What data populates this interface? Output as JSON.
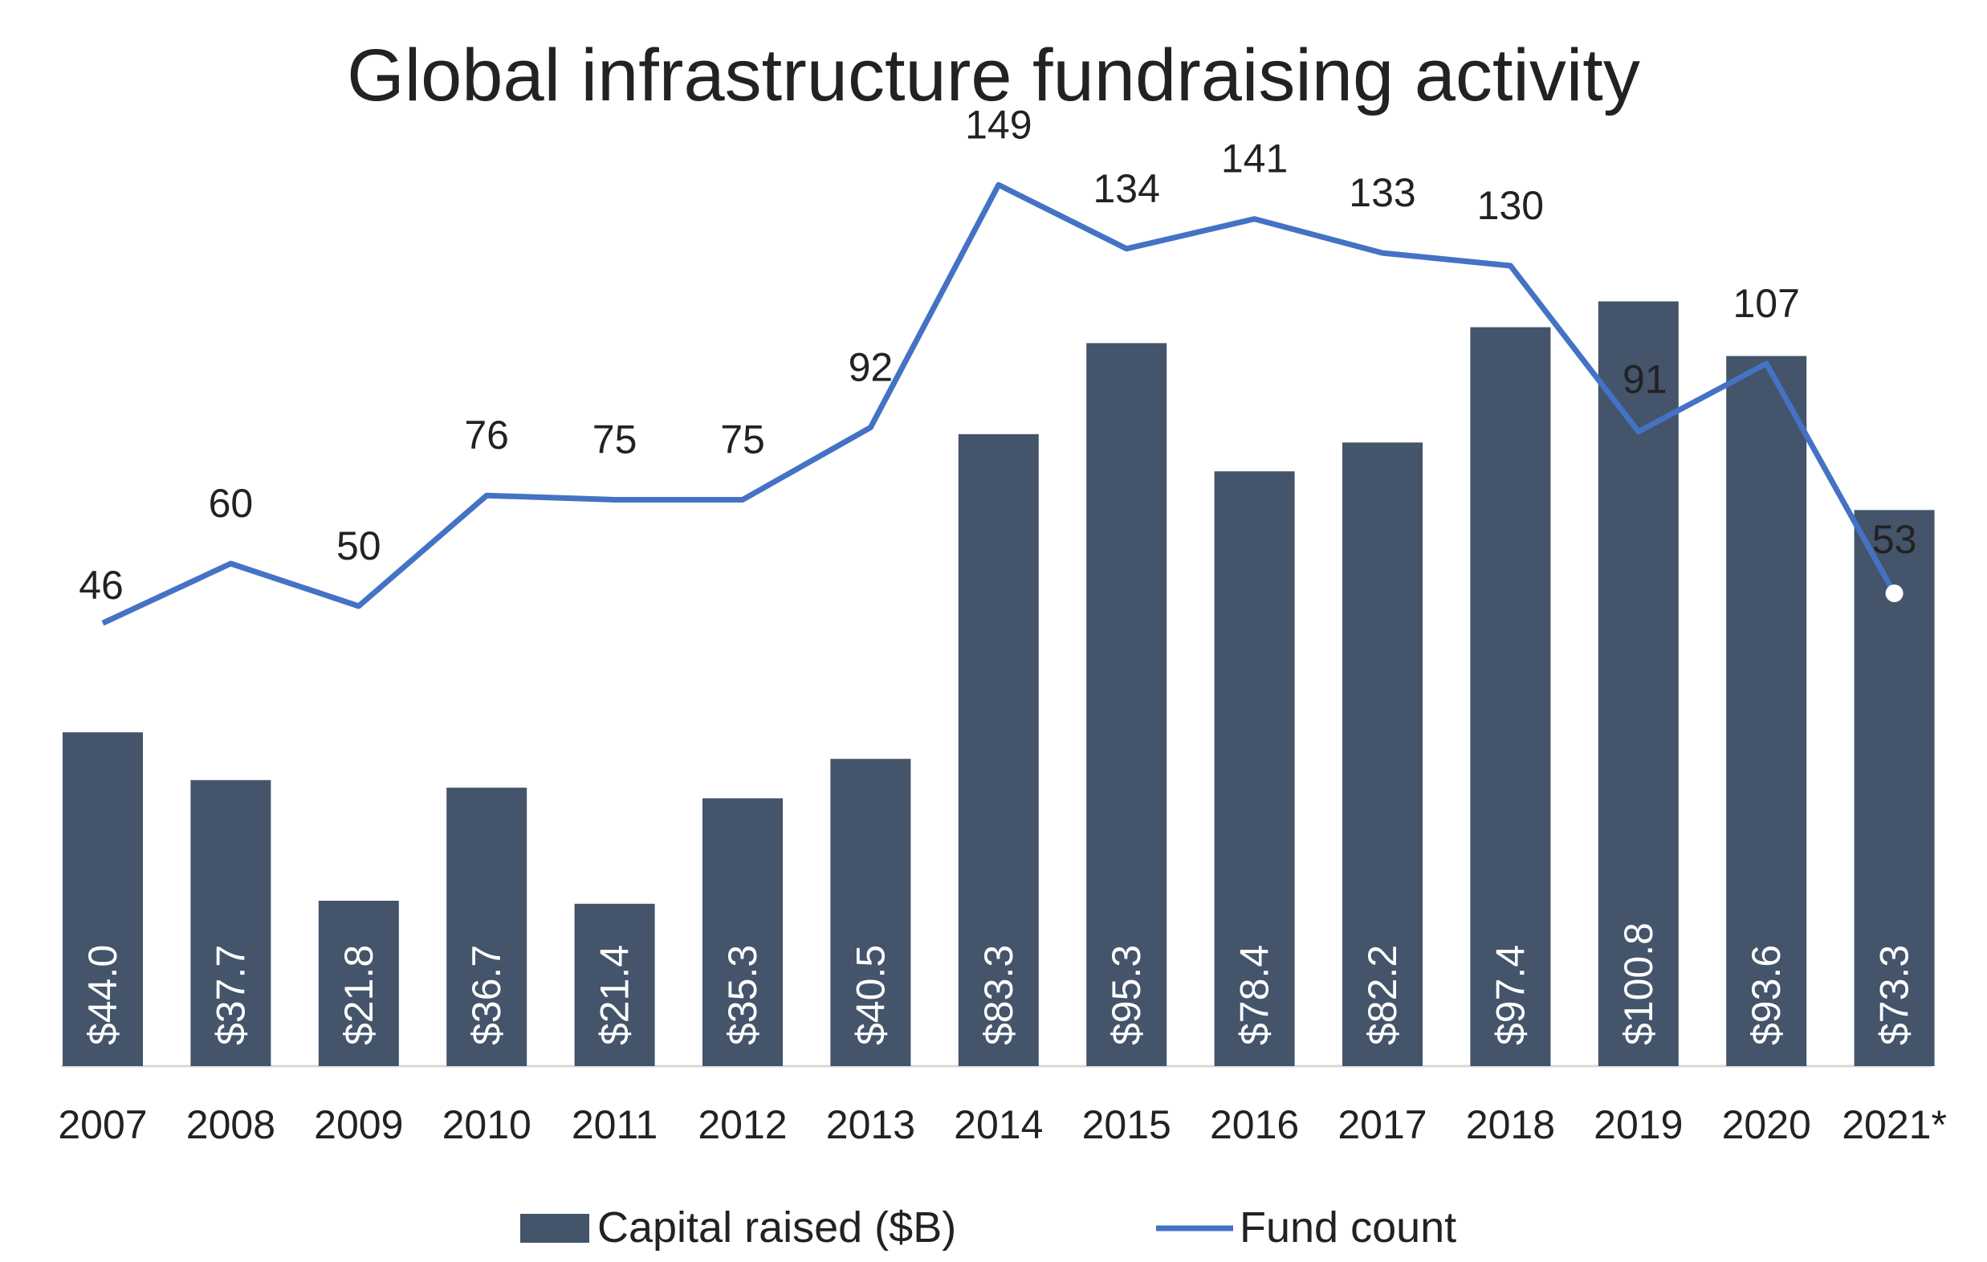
{
  "chart_data": {
    "type": "bar",
    "title": "Global infrastructure fundraising activity",
    "categories": [
      "2007",
      "2008",
      "2009",
      "2010",
      "2011",
      "2012",
      "2013",
      "2014",
      "2015",
      "2016",
      "2017",
      "2018",
      "2019",
      "2020",
      "2021*"
    ],
    "series": [
      {
        "name": "Capital raised ($B)",
        "type": "bar",
        "values": [
          44.0,
          37.7,
          21.8,
          36.7,
          21.4,
          35.3,
          40.5,
          83.3,
          95.3,
          78.4,
          82.2,
          97.4,
          100.8,
          93.6,
          73.3
        ],
        "labels": [
          "$44.0",
          "$37.7",
          "$21.8",
          "$36.7",
          "$21.4",
          "$35.3",
          "$40.5",
          "$83.3",
          "$95.3",
          "$78.4",
          "$82.2",
          "$97.4",
          "$100.8",
          "$93.6",
          "$73.3"
        ]
      },
      {
        "name": "Fund count",
        "type": "line",
        "values": [
          46,
          60,
          50,
          76,
          75,
          75,
          92,
          149,
          134,
          141,
          133,
          130,
          91,
          107,
          53
        ]
      }
    ],
    "colors": {
      "bar": "#44546a",
      "line": "#4472c4",
      "marker": "#ffffff",
      "axis": "#d9d9d9"
    },
    "legend": "bottom"
  }
}
